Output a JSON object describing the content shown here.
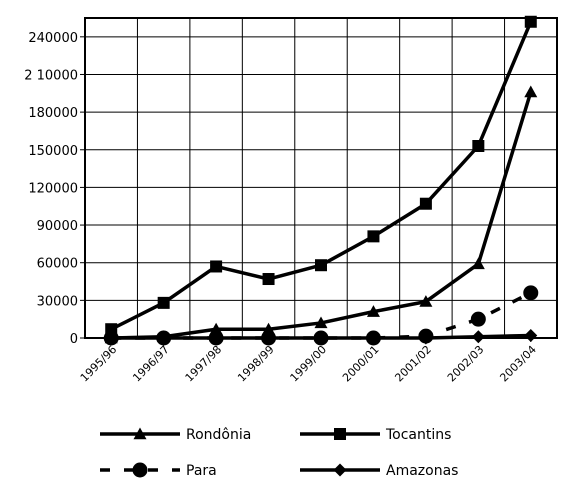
{
  "chart_data": {
    "type": "line",
    "categories": [
      "1995/96",
      "1996/97",
      "1997/98",
      "1998/99",
      "1999/00",
      "2000/01",
      "2001/02",
      "2002/03",
      "2003/04"
    ],
    "y_ticks": [
      "0",
      "30000",
      "60000",
      "90000",
      "120000",
      "150000",
      "180000",
      "2 10000",
      "240000"
    ],
    "ylim": [
      0,
      255000
    ],
    "grid": "horizontal",
    "legend_position": "bottom",
    "series": [
      {
        "name": "Rondônia",
        "marker": "triangle",
        "style": "solid",
        "values": [
          0,
          1000,
          7000,
          7000,
          12000,
          21000,
          29000,
          59000,
          196000
        ]
      },
      {
        "name": "Tocantins",
        "marker": "square",
        "style": "solid",
        "values": [
          7000,
          28000,
          57000,
          47000,
          58000,
          81000,
          107000,
          153000,
          252000
        ]
      },
      {
        "name": "Para",
        "marker": "circle",
        "style": "dashed",
        "values": [
          0,
          0,
          0,
          0,
          0,
          0,
          1500,
          15000,
          36000
        ]
      },
      {
        "name": "Amazonas",
        "marker": "diamond",
        "style": "solid",
        "values": [
          0,
          0,
          0,
          0,
          0,
          0,
          0,
          1000,
          2000
        ]
      }
    ]
  }
}
